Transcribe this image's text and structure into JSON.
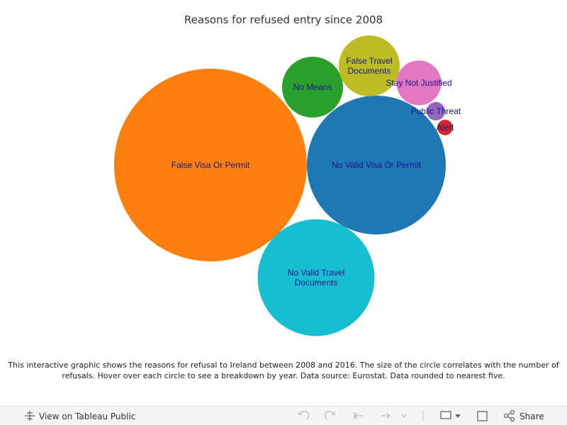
{
  "chart_data": {
    "type": "bubble",
    "title": "Reasons for refused entry since 2008",
    "categories": [
      "False Visa Or Permit",
      "No Valid Visa Or Permit",
      "No Valid Travel Documents",
      "No Means",
      "False Travel Documents",
      "Stay Not Justified",
      "Public Threat",
      "Alert"
    ],
    "values": [
      18500,
      9600,
      6800,
      1850,
      1850,
      1000,
      170,
      120
    ],
    "colors": [
      "#ff7f0e",
      "#1f77b4",
      "#17becf",
      "#2ca02c",
      "#bcbd22",
      "#e377c2",
      "#9467bd",
      "#d62728"
    ],
    "description": "This interactive graphic shows the reasons for refusal to Ireland between 2008 and 2016. The size of the circle correlates with the number of refusals. Hover over each circle to see a breakdown by year. Data source: Eurostat. Data rounded to nearest five."
  },
  "footer": {
    "view": "View on Tableau Public",
    "share": "Share"
  }
}
